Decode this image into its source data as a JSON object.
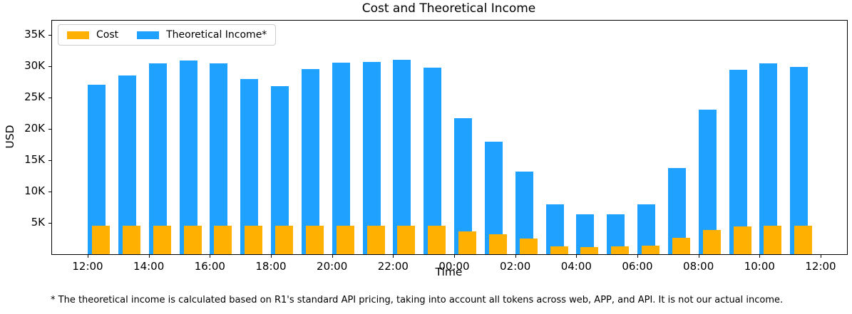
{
  "chart": {
    "title": "Cost and Theoretical Income",
    "xlabel": "Time",
    "ylabel": "USD",
    "footnote": "* The theoretical income is calculated based on R1's standard API pricing, taking into account all tokens across web, APP, and API. It is not our actual income."
  },
  "colors": {
    "cost": "#FFB000",
    "income": "#1FA2FF",
    "spine": "#000000"
  },
  "chart_data": {
    "type": "bar",
    "title": "Cost and Theoretical Income",
    "xlabel": "Time",
    "ylabel": "USD",
    "units": "USD",
    "legend_position": "upper left",
    "grid": false,
    "x": [
      "12:00",
      "13:00",
      "14:00",
      "15:00",
      "16:00",
      "17:00",
      "18:00",
      "19:00",
      "20:00",
      "21:00",
      "22:00",
      "23:00",
      "00:00",
      "01:00",
      "02:00",
      "03:00",
      "04:00",
      "05:00",
      "06:00",
      "07:00",
      "08:00",
      "09:00",
      "10:00",
      "11:00"
    ],
    "series": [
      {
        "name": "Cost",
        "color": "#FFB000",
        "values": [
          4500,
          4500,
          4500,
          4500,
          4500,
          4500,
          4500,
          4500,
          4500,
          4500,
          4500,
          4500,
          3600,
          3200,
          2500,
          1300,
          1100,
          1200,
          1400,
          2600,
          3900,
          4400,
          4500,
          4500
        ]
      },
      {
        "name": "Theoretical Income*",
        "color": "#1FA2FF",
        "values": [
          27000,
          28500,
          30400,
          30900,
          30400,
          27900,
          26800,
          29600,
          30600,
          30700,
          31000,
          29800,
          21700,
          18000,
          13200,
          8000,
          6400,
          6400,
          8000,
          13700,
          23100,
          29400,
          30400,
          29900
        ]
      }
    ],
    "x_ticks": [
      "12:00",
      "14:00",
      "16:00",
      "18:00",
      "20:00",
      "22:00",
      "00:00",
      "02:00",
      "04:00",
      "06:00",
      "08:00",
      "10:00",
      "12:00"
    ],
    "y_ticks": [
      {
        "value": 5000,
        "label": "5K"
      },
      {
        "value": 10000,
        "label": "10K"
      },
      {
        "value": 15000,
        "label": "15K"
      },
      {
        "value": 20000,
        "label": "20K"
      },
      {
        "value": 25000,
        "label": "25K"
      },
      {
        "value": 30000,
        "label": "30K"
      },
      {
        "value": 35000,
        "label": "35K"
      }
    ],
    "ylim": [
      0,
      37270
    ],
    "footnote": "* The theoretical income is calculated based on R1's standard API pricing, taking into account all tokens across web, APP, and API. It is not our actual income."
  }
}
